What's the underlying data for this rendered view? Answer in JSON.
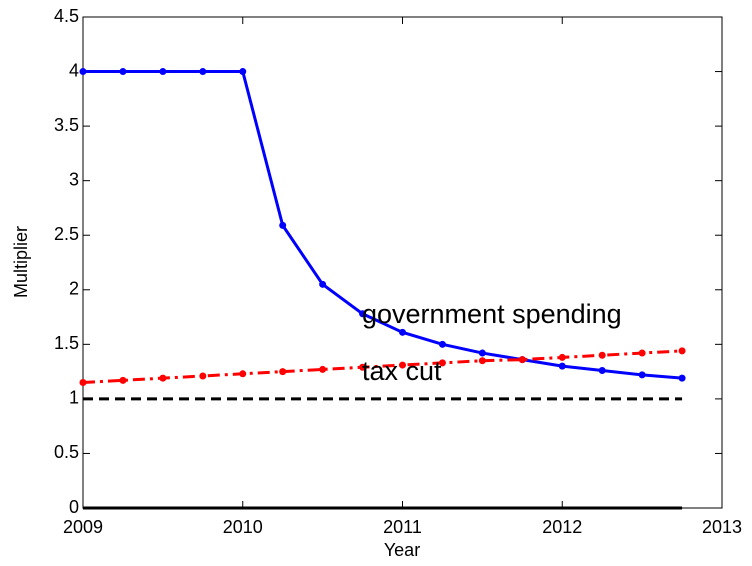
{
  "chart_data": {
    "type": "line",
    "x_label": "Year",
    "y_label": "Multiplier",
    "x": [
      2009,
      2009.25,
      2009.5,
      2009.75,
      2010,
      2010.25,
      2010.5,
      2010.75,
      2011,
      2011.25,
      2011.5,
      2011.75,
      2012,
      2012.25,
      2012.5,
      2012.75
    ],
    "series": [
      {
        "color": "#0000ff",
        "style": "solid",
        "marker": true,
        "values": [
          4,
          4,
          4,
          4,
          4,
          2.59,
          2.05,
          1.78,
          1.61,
          1.5,
          1.42,
          1.36,
          1.3,
          1.26,
          1.22,
          1.19
        ]
      },
      {
        "color": "#ff0000",
        "style": "dashdot",
        "marker": true,
        "values": [
          1.15,
          1.17,
          1.19,
          1.21,
          1.23,
          1.25,
          1.27,
          1.29,
          1.31,
          1.33,
          1.35,
          1.36,
          1.38,
          1.4,
          1.42,
          1.44
        ]
      },
      {
        "color": "#000000",
        "style": "dashed",
        "marker": false,
        "values": [
          1,
          1,
          1,
          1,
          1,
          1,
          1,
          1,
          1,
          1,
          1,
          1,
          1,
          1,
          1,
          1
        ]
      },
      {
        "color": "#000000",
        "style": "solid",
        "marker": false,
        "values": [
          0,
          0,
          0,
          0,
          0,
          0,
          0,
          0,
          0,
          0,
          0,
          0,
          0,
          0,
          0,
          0
        ]
      }
    ],
    "annotations": [
      "government spending",
      "tax cut"
    ],
    "xlim": [
      2009,
      2013
    ],
    "xticks": [
      2009,
      2010,
      2011,
      2012,
      2013
    ],
    "ylim": [
      0,
      4.5
    ],
    "yticks": [
      0,
      0.5,
      1,
      1.5,
      2,
      2.5,
      3,
      3.5,
      4,
      4.5
    ],
    "grid": false
  }
}
